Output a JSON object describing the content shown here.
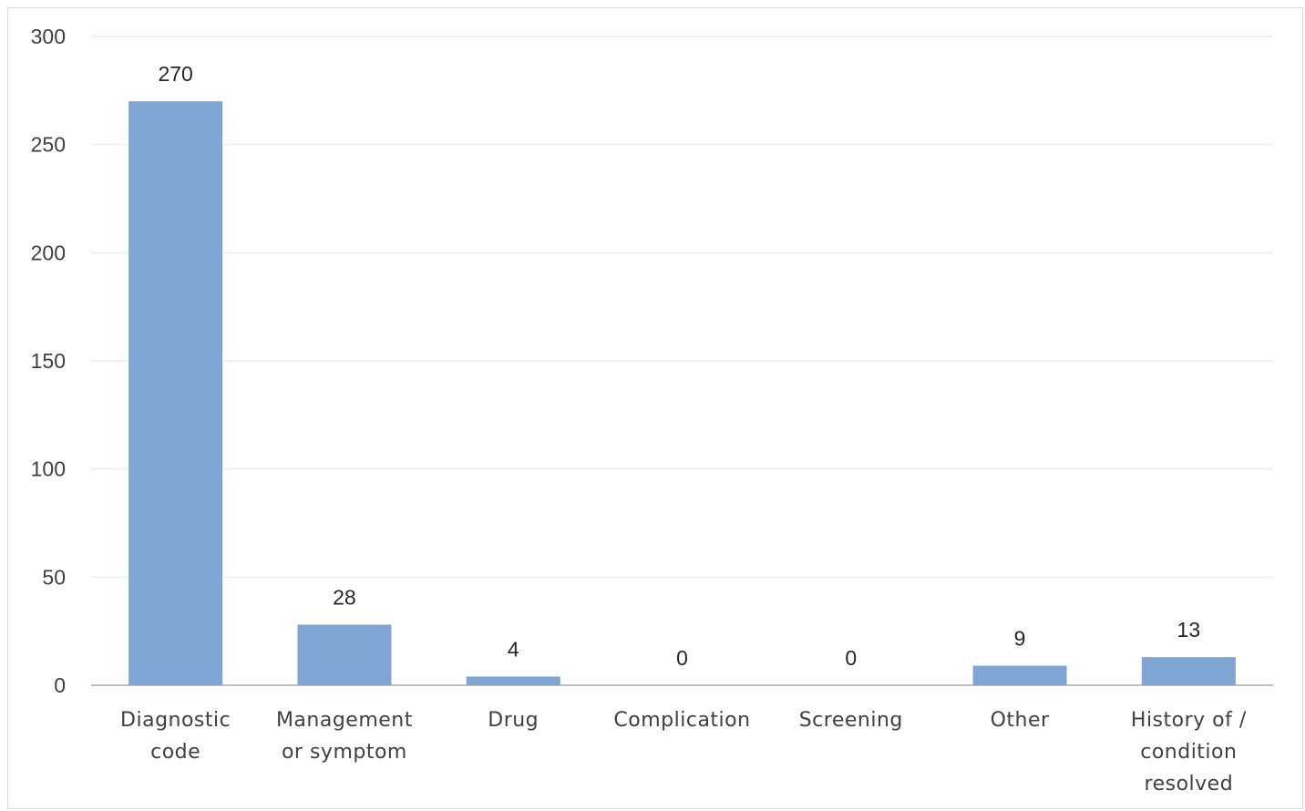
{
  "chart_data": {
    "type": "bar",
    "categories": [
      [
        "Diagnostic",
        "code"
      ],
      [
        "Management",
        "or symptom"
      ],
      [
        "Drug"
      ],
      [
        "Complication"
      ],
      [
        "Screening"
      ],
      [
        "Other"
      ],
      [
        "History of /",
        "condition",
        "resolved"
      ]
    ],
    "values": [
      270,
      28,
      4,
      0,
      0,
      9,
      13
    ],
    "data_labels": [
      "270",
      "28",
      "4",
      "0",
      "0",
      "9",
      "13"
    ],
    "yticks": [
      "0",
      "50",
      "100",
      "150",
      "200",
      "250",
      "300"
    ],
    "ylim": [
      0,
      300
    ],
    "grid": true,
    "legend": "none",
    "colors": {
      "bar": "#7fa5d2",
      "grid": "#f0f0f0",
      "axis": "#bfbfbf"
    }
  }
}
